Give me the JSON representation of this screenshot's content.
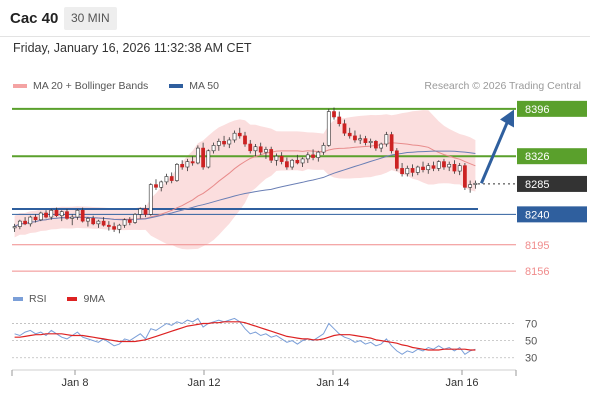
{
  "header": {
    "symbol": "Cac 40",
    "timeframe": "30 MIN"
  },
  "datetime": "Friday, January 16, 2026 11:32:38 AM CET",
  "legend": {
    "bollinger": {
      "label": "MA 20 + Bollinger Bands",
      "color": "#f4a3a3"
    },
    "ma50": {
      "label": "MA 50",
      "color": "#2f5f9e"
    }
  },
  "credit": "Research © 2026 Trading Central",
  "colors": {
    "resistance": "#5aa02c",
    "support": "#2f5f9e",
    "minor_support": "#f08c8c",
    "current": "#333333",
    "up_candle": "#ffffff",
    "down_candle": "#cc2222",
    "bollinger_fill": "#fbdede",
    "ma20": "#e88b8b",
    "ma50": "#6a7fb5",
    "arrow": "#2f5f9e",
    "rsi": "#7b9fd8",
    "rsi_ma": "#dd2222"
  },
  "chart_data": [
    {
      "type": "candlestick",
      "x_labels": [
        "Jan 8",
        "Jan 12",
        "Jan 14",
        "Jan 16"
      ],
      "ylim": [
        8140,
        8415
      ],
      "levels": [
        {
          "value": 8396,
          "label": "8396",
          "kind": "resistance"
        },
        {
          "value": 8326,
          "label": "8326",
          "kind": "resistance"
        },
        {
          "value": 8285,
          "label": "8285",
          "kind": "current"
        },
        {
          "value": 8240,
          "label": "8240",
          "kind": "support"
        },
        {
          "value": 8195,
          "label": "8195",
          "kind": "minor_support"
        },
        {
          "value": 8156,
          "label": "8156",
          "kind": "minor_support"
        }
      ],
      "candles": [
        [
          8220,
          8226,
          8214,
          8222
        ],
        [
          8222,
          8232,
          8218,
          8230
        ],
        [
          8230,
          8236,
          8224,
          8226
        ],
        [
          8226,
          8238,
          8222,
          8236
        ],
        [
          8236,
          8240,
          8228,
          8232
        ],
        [
          8232,
          8244,
          8230,
          8242
        ],
        [
          8242,
          8246,
          8234,
          8236
        ],
        [
          8236,
          8248,
          8232,
          8246
        ],
        [
          8246,
          8250,
          8236,
          8238
        ],
        [
          8238,
          8246,
          8230,
          8244
        ],
        [
          8244,
          8248,
          8232,
          8234
        ],
        [
          8234,
          8240,
          8224,
          8236
        ],
        [
          8236,
          8248,
          8232,
          8246
        ],
        [
          8246,
          8250,
          8228,
          8230
        ],
        [
          8230,
          8236,
          8222,
          8234
        ],
        [
          8234,
          8238,
          8224,
          8226
        ],
        [
          8226,
          8232,
          8220,
          8230
        ],
        [
          8230,
          8236,
          8222,
          8224
        ],
        [
          8224,
          8230,
          8216,
          8222
        ],
        [
          8222,
          8228,
          8214,
          8218
        ],
        [
          8218,
          8226,
          8212,
          8224
        ],
        [
          8224,
          8234,
          8220,
          8232
        ],
        [
          8232,
          8236,
          8224,
          8228
        ],
        [
          8228,
          8242,
          8226,
          8240
        ],
        [
          8240,
          8250,
          8234,
          8248
        ],
        [
          8248,
          8254,
          8236,
          8240
        ],
        [
          8240,
          8286,
          8238,
          8284
        ],
        [
          8284,
          8292,
          8276,
          8280
        ],
        [
          8280,
          8290,
          8274,
          8288
        ],
        [
          8288,
          8300,
          8284,
          8296
        ],
        [
          8296,
          8302,
          8286,
          8290
        ],
        [
          8290,
          8316,
          8288,
          8314
        ],
        [
          8314,
          8320,
          8306,
          8310
        ],
        [
          8310,
          8322,
          8304,
          8318
        ],
        [
          8318,
          8326,
          8312,
          8316
        ],
        [
          8316,
          8342,
          8314,
          8338
        ],
        [
          8338,
          8346,
          8306,
          8310
        ],
        [
          8310,
          8336,
          8308,
          8334
        ],
        [
          8334,
          8346,
          8330,
          8342
        ],
        [
          8342,
          8352,
          8334,
          8348
        ],
        [
          8348,
          8356,
          8340,
          8344
        ],
        [
          8344,
          8354,
          8338,
          8350
        ],
        [
          8350,
          8364,
          8346,
          8360
        ],
        [
          8360,
          8368,
          8352,
          8356
        ],
        [
          8356,
          8362,
          8340,
          8344
        ],
        [
          8344,
          8350,
          8330,
          8334
        ],
        [
          8334,
          8344,
          8326,
          8340
        ],
        [
          8340,
          8346,
          8328,
          8332
        ],
        [
          8332,
          8340,
          8322,
          8336
        ],
        [
          8336,
          8340,
          8316,
          8320
        ],
        [
          8320,
          8330,
          8312,
          8326
        ],
        [
          8326,
          8332,
          8314,
          8318
        ],
        [
          8318,
          8324,
          8306,
          8310
        ],
        [
          8310,
          8322,
          8306,
          8320
        ],
        [
          8320,
          8328,
          8314,
          8316
        ],
        [
          8316,
          8324,
          8310,
          8322
        ],
        [
          8322,
          8332,
          8316,
          8328
        ],
        [
          8328,
          8336,
          8320,
          8324
        ],
        [
          8324,
          8334,
          8318,
          8332
        ],
        [
          8332,
          8346,
          8328,
          8342
        ],
        [
          8342,
          8396,
          8340,
          8392
        ],
        [
          8392,
          8398,
          8380,
          8384
        ],
        [
          8384,
          8392,
          8370,
          8374
        ],
        [
          8374,
          8380,
          8356,
          8360
        ],
        [
          8360,
          8368,
          8352,
          8356
        ],
        [
          8356,
          8364,
          8346,
          8350
        ],
        [
          8350,
          8358,
          8344,
          8352
        ],
        [
          8352,
          8356,
          8342,
          8346
        ],
        [
          8346,
          8352,
          8338,
          8348
        ],
        [
          8348,
          8350,
          8334,
          8338
        ],
        [
          8338,
          8346,
          8332,
          8344
        ],
        [
          8344,
          8362,
          8340,
          8358
        ],
        [
          8358,
          8362,
          8330,
          8334
        ],
        [
          8334,
          8338,
          8304,
          8308
        ],
        [
          8308,
          8316,
          8296,
          8300
        ],
        [
          8300,
          8312,
          8296,
          8308
        ],
        [
          8308,
          8314,
          8296,
          8302
        ],
        [
          8302,
          8312,
          8298,
          8310
        ],
        [
          8310,
          8318,
          8302,
          8306
        ],
        [
          8306,
          8316,
          8300,
          8312
        ],
        [
          8312,
          8318,
          8304,
          8308
        ],
        [
          8308,
          8320,
          8304,
          8318
        ],
        [
          8318,
          8322,
          8306,
          8310
        ],
        [
          8310,
          8318,
          8304,
          8314
        ],
        [
          8314,
          8320,
          8300,
          8304
        ],
        [
          8304,
          8316,
          8298,
          8312
        ],
        [
          8312,
          8316,
          8276,
          8280
        ],
        [
          8280,
          8290,
          8272,
          8284
        ],
        [
          8284,
          8290,
          8278,
          8286
        ]
      ]
    },
    {
      "type": "line",
      "title": "RSI",
      "series": [
        {
          "name": "RSI"
        },
        {
          "name": "9MA"
        }
      ],
      "ylim": [
        25,
        80
      ],
      "y_ticks": [
        70,
        50,
        30
      ],
      "rsi": [
        58,
        56,
        60,
        62,
        58,
        60,
        56,
        62,
        58,
        54,
        52,
        56,
        60,
        54,
        52,
        50,
        48,
        52,
        48,
        44,
        46,
        52,
        50,
        54,
        58,
        52,
        64,
        62,
        66,
        70,
        68,
        72,
        70,
        74,
        72,
        76,
        66,
        70,
        72,
        74,
        72,
        74,
        76,
        72,
        64,
        58,
        60,
        56,
        58,
        54,
        56,
        52,
        48,
        50,
        46,
        50,
        52,
        50,
        54,
        58,
        70,
        64,
        58,
        54,
        52,
        48,
        50,
        46,
        48,
        44,
        46,
        52,
        44,
        38,
        34,
        38,
        36,
        40,
        38,
        42,
        40,
        44,
        40,
        42,
        38,
        42,
        34,
        38,
        40
      ],
      "rsi_ma": [
        54,
        54,
        55,
        56,
        57,
        57,
        58,
        58,
        58,
        58,
        57,
        56,
        56,
        56,
        55,
        54,
        53,
        52,
        51,
        50,
        49,
        49,
        49,
        49,
        50,
        51,
        53,
        55,
        57,
        59,
        61,
        63,
        65,
        67,
        68,
        69,
        70,
        70,
        71,
        71,
        72,
        72,
        72,
        72,
        71,
        69,
        67,
        65,
        63,
        61,
        59,
        57,
        55,
        54,
        53,
        52,
        52,
        51,
        51,
        52,
        54,
        56,
        57,
        57,
        57,
        56,
        55,
        54,
        53,
        51,
        50,
        49,
        48,
        47,
        45,
        44,
        42,
        41,
        40,
        39,
        39,
        39,
        40,
        40,
        40,
        40,
        40,
        39,
        39
      ]
    }
  ]
}
